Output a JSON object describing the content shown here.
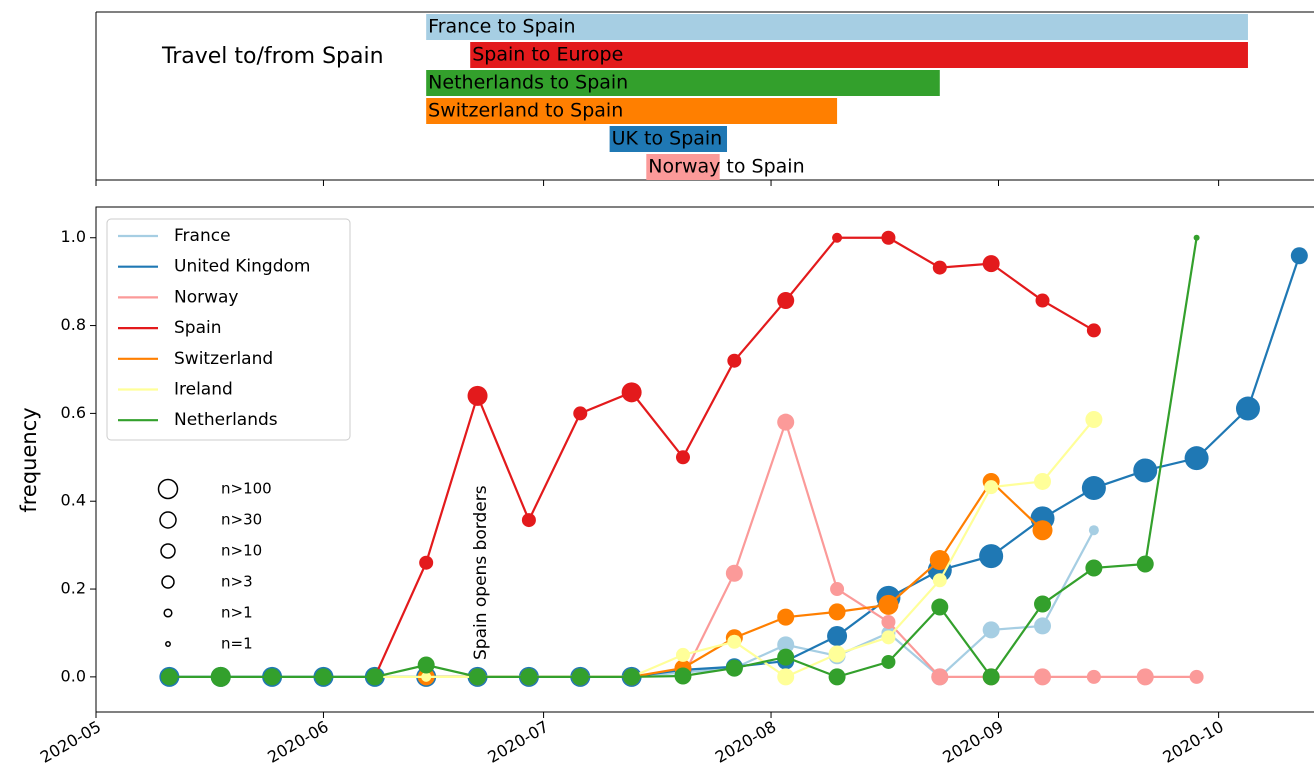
{
  "chart_data": [
    {
      "type": "gantt",
      "title": "Travel to/from Spain",
      "tasks": [
        {
          "name": "France to Spain",
          "start": "2020-06-15",
          "end": "2020-10-05",
          "color": "#a6cee3"
        },
        {
          "name": "Spain to Europe",
          "start": "2020-06-21",
          "end": "2020-10-05",
          "color": "#e31a1c"
        },
        {
          "name": "Netherlands to Spain",
          "start": "2020-06-15",
          "end": "2020-08-24",
          "color": "#33a02c"
        },
        {
          "name": "Switzerland to Spain",
          "start": "2020-06-15",
          "end": "2020-08-10",
          "color": "#ff7f00"
        },
        {
          "name": "UK to Spain",
          "start": "2020-07-10",
          "end": "2020-07-26",
          "color": "#1f78b4"
        },
        {
          "name": "Norway to Spain",
          "start": "2020-07-15",
          "end": "2020-07-25",
          "color": "#fb9a99"
        }
      ]
    },
    {
      "type": "line",
      "y_label": "frequency",
      "annotations": [
        "Spain opens borders"
      ],
      "x": [
        "2020-05-11",
        "2020-05-18",
        "2020-05-25",
        "2020-06-01",
        "2020-06-08",
        "2020-06-15",
        "2020-06-22",
        "2020-06-29",
        "2020-07-06",
        "2020-07-13",
        "2020-07-20",
        "2020-07-27",
        "2020-08-03",
        "2020-08-10",
        "2020-08-17",
        "2020-08-24",
        "2020-08-31",
        "2020-09-07",
        "2020-09-14",
        "2020-09-21",
        "2020-09-28",
        "2020-10-05",
        "2020-10-12"
      ],
      "xlim": [
        "2020-05-01",
        "2020-10-14"
      ],
      "xticks": [
        {
          "value": "2020-05-01",
          "label": "2020-05"
        },
        {
          "value": "2020-06-01",
          "label": "2020-06"
        },
        {
          "value": "2020-07-01",
          "label": "2020-07"
        },
        {
          "value": "2020-08-01",
          "label": "2020-08"
        },
        {
          "value": "2020-09-01",
          "label": "2020-09"
        },
        {
          "value": "2020-10-01",
          "label": "2020-10"
        }
      ],
      "ylim": [
        -0.08,
        1.07
      ],
      "yticks": [
        {
          "value": 0,
          "label": "0.0"
        },
        {
          "value": 0.2,
          "label": "0.2"
        },
        {
          "value": 0.4,
          "label": "0.4"
        },
        {
          "value": 0.6,
          "label": "0.6"
        },
        {
          "value": 0.8,
          "label": "0.8"
        },
        {
          "value": 1,
          "label": "1.0"
        }
      ],
      "legend": "upper left",
      "size_legend": [
        {
          "value": 100,
          "label": "n>100"
        },
        {
          "value": 30,
          "label": "n>30"
        },
        {
          "value": 10,
          "label": "n>10"
        },
        {
          "value": 3,
          "label": "n>3"
        },
        {
          "value": 1,
          "label": "n>1"
        },
        {
          "value": 1,
          "label": "n=1"
        }
      ],
      "series": [
        {
          "name": "France",
          "color": "#a6cee3",
          "values": [
            null,
            null,
            null,
            null,
            null,
            0,
            0,
            0,
            0,
            0,
            0.01,
            0.02,
            0.073,
            0.048,
            0.1,
            0,
            0.107,
            0.116,
            0.334,
            null,
            null,
            null,
            null
          ],
          "n": [
            null,
            null,
            null,
            null,
            null,
            5,
            5,
            5,
            5,
            5,
            5,
            20,
            20,
            20,
            5,
            20,
            20,
            20,
            2,
            null,
            null,
            null,
            null
          ]
        },
        {
          "name": "United Kingdom",
          "color": "#1f78b4",
          "values": [
            0,
            0,
            0,
            0,
            0,
            0,
            0,
            0,
            0,
            0,
            0.016,
            0.023,
            0.036,
            0.093,
            0.18,
            0.243,
            0.275,
            0.361,
            0.43,
            0.47,
            0.498,
            0.611,
            0.959
          ],
          "n": [
            50,
            50,
            50,
            50,
            50,
            50,
            50,
            50,
            50,
            50,
            20,
            20,
            20,
            50,
            150,
            150,
            150,
            150,
            150,
            150,
            150,
            150,
            20
          ]
        },
        {
          "name": "Norway",
          "color": "#fb9a99",
          "values": [
            null,
            null,
            null,
            null,
            null,
            null,
            null,
            null,
            null,
            null,
            0,
            0.236,
            0.58,
            0.2,
            0.125,
            0,
            0,
            0,
            0,
            0,
            0,
            null,
            null
          ],
          "n": [
            null,
            null,
            null,
            null,
            null,
            null,
            null,
            null,
            null,
            null,
            2,
            20,
            20,
            5,
            5,
            20,
            20,
            20,
            5,
            20,
            5,
            null,
            null
          ]
        },
        {
          "name": "Spain",
          "color": "#e31a1c",
          "values": [
            null,
            null,
            null,
            null,
            0,
            0.26,
            0.64,
            0.357,
            0.6,
            0.648,
            0.5,
            0.72,
            0.857,
            1,
            1,
            0.932,
            0.941,
            0.857,
            0.789,
            null,
            null,
            null,
            null
          ],
          "n": [
            null,
            null,
            null,
            null,
            2,
            5,
            50,
            5,
            5,
            50,
            5,
            5,
            20,
            2,
            5,
            5,
            20,
            5,
            5,
            null,
            null,
            null,
            null
          ]
        },
        {
          "name": "Switzerland",
          "color": "#ff7f00",
          "values": [
            null,
            null,
            null,
            null,
            null,
            0,
            0,
            0,
            0,
            0,
            0.02,
            0.089,
            0.136,
            0.148,
            0.164,
            0.266,
            0.445,
            0.334,
            null,
            null,
            null,
            null,
            null
          ],
          "n": [
            null,
            null,
            null,
            null,
            null,
            20,
            20,
            20,
            20,
            20,
            20,
            20,
            20,
            20,
            50,
            50,
            20,
            50,
            null,
            null,
            null,
            null,
            null
          ]
        },
        {
          "name": "Ireland",
          "color": "#ffff99",
          "values": [
            null,
            null,
            null,
            null,
            0,
            0,
            0,
            0,
            0,
            0,
            0.05,
            0.08,
            0,
            0.052,
            0.09,
            0.22,
            0.432,
            0.445,
            0.586,
            null,
            null,
            null,
            null
          ],
          "n": [
            null,
            null,
            null,
            null,
            2,
            2,
            2,
            2,
            2,
            2,
            5,
            5,
            20,
            20,
            5,
            5,
            5,
            20,
            20,
            null,
            null,
            null,
            null
          ]
        },
        {
          "name": "Netherlands",
          "color": "#33a02c",
          "values": [
            0,
            0,
            0,
            0,
            0,
            0.027,
            0,
            0,
            0,
            0,
            0.002,
            0.02,
            0.045,
            0,
            0.034,
            0.159,
            0,
            0.166,
            0.248,
            0.257,
            1,
            null,
            null
          ],
          "n": [
            20,
            50,
            20,
            20,
            20,
            20,
            20,
            20,
            20,
            20,
            20,
            20,
            20,
            20,
            5,
            20,
            20,
            20,
            20,
            20,
            1,
            null,
            null
          ]
        }
      ]
    }
  ]
}
